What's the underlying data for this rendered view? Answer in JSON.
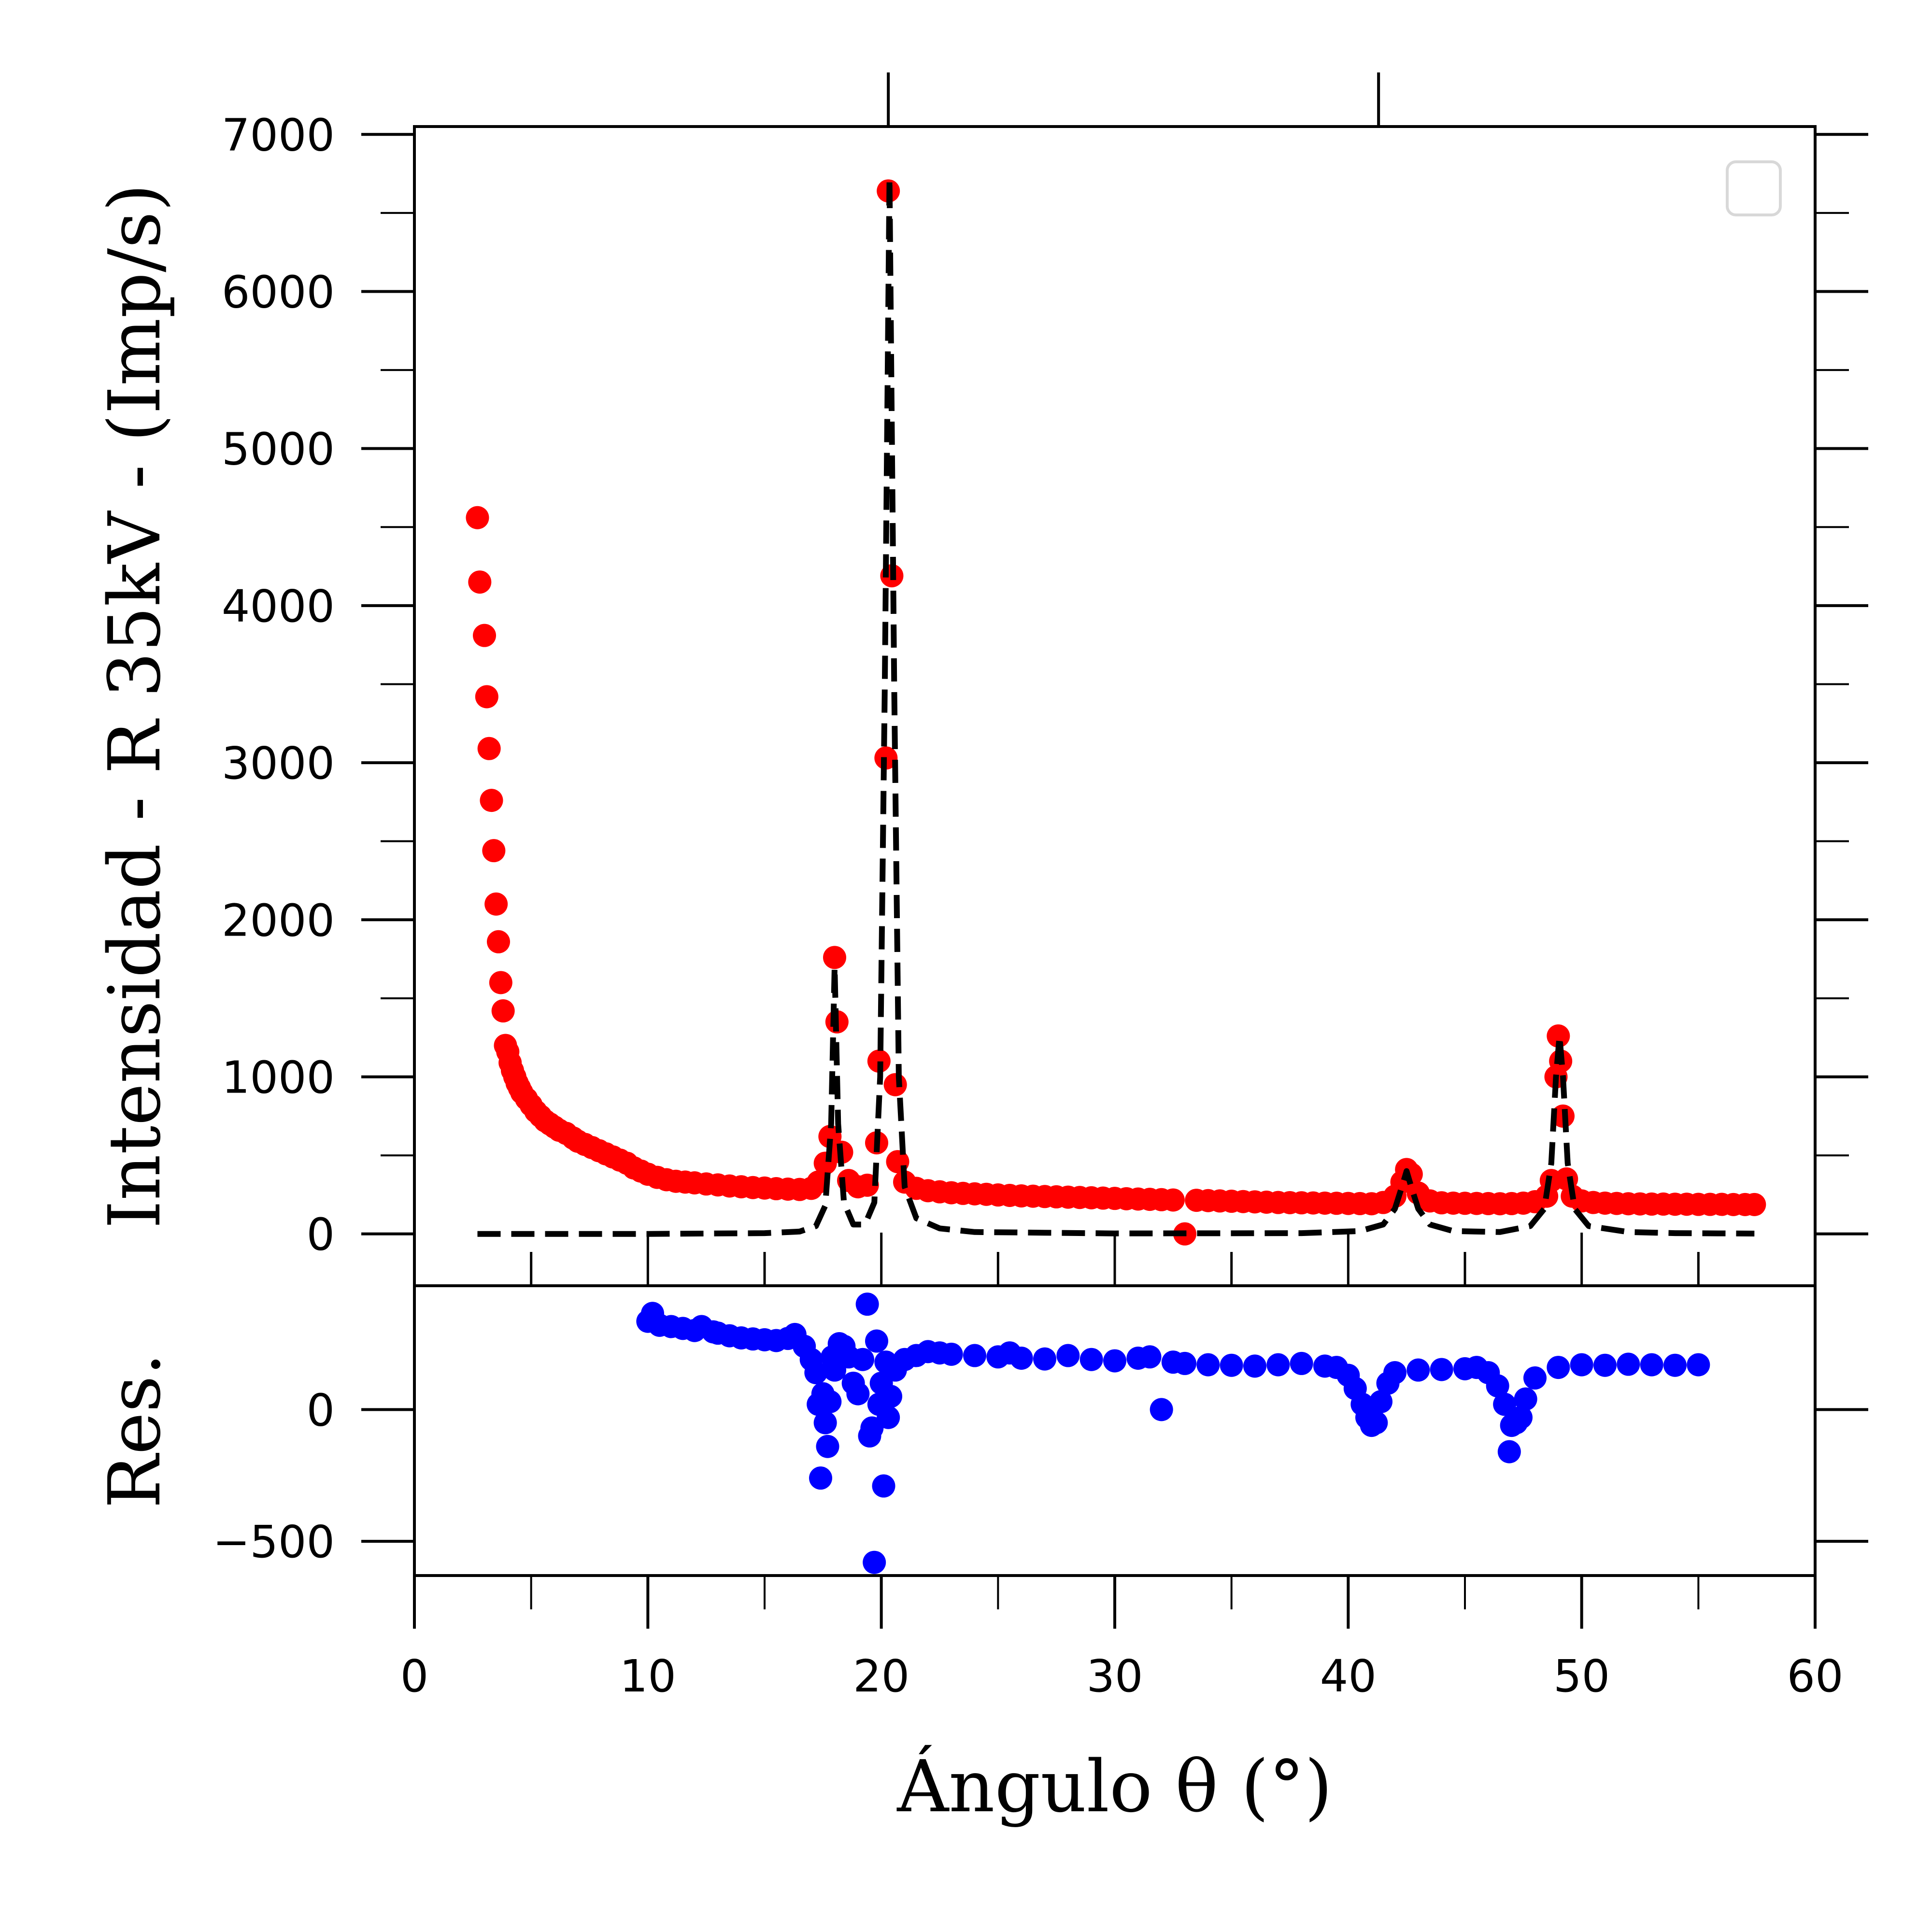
{
  "chart_data": {
    "type": "scatter",
    "xlabel": "Ángulo θ (°)",
    "ylabel": "Intensidad - R 35kV - (Imp/s)",
    "residual_label": "Res.",
    "xlim": [
      0,
      60
    ],
    "ylim_main": [
      -330,
      7050
    ],
    "ylim_residual": [
      -630,
      470
    ],
    "x_ticks": [
      0,
      10,
      20,
      30,
      40,
      50,
      60
    ],
    "y_ticks_main": [
      0,
      1000,
      2000,
      3000,
      4000,
      5000,
      6000,
      7000
    ],
    "y_ticks_residual": [
      -500,
      0
    ],
    "y_tick_labels_residual": [
      "−500",
      "0"
    ],
    "legend": {
      "position": "top-right",
      "entries": []
    },
    "grid": false,
    "colors": {
      "data": "#ff0000",
      "fit": "#000000",
      "residual": "#0000ff"
    },
    "series": [
      {
        "kind": "measured",
        "style": "markers",
        "color": "#ff0000",
        "points": [
          [
            2.7,
            4560
          ],
          [
            2.8,
            4150
          ],
          [
            3.0,
            3810
          ],
          [
            3.1,
            3420
          ],
          [
            3.2,
            3090
          ],
          [
            3.3,
            2760
          ],
          [
            3.4,
            2440
          ],
          [
            3.5,
            2100
          ],
          [
            3.6,
            1860
          ],
          [
            3.7,
            1600
          ],
          [
            3.8,
            1420
          ],
          [
            3.9,
            1200
          ],
          [
            4.0,
            1160
          ],
          [
            4.1,
            1090
          ],
          [
            4.2,
            1040
          ],
          [
            4.3,
            1000
          ],
          [
            4.4,
            960
          ],
          [
            4.5,
            930
          ],
          [
            4.6,
            900
          ],
          [
            4.8,
            860
          ],
          [
            5.0,
            820
          ],
          [
            5.2,
            780
          ],
          [
            5.4,
            750
          ],
          [
            5.6,
            720
          ],
          [
            5.8,
            700
          ],
          [
            6.0,
            680
          ],
          [
            6.2,
            660
          ],
          [
            6.5,
            640
          ],
          [
            6.8,
            610
          ],
          [
            7.0,
            590
          ],
          [
            7.3,
            570
          ],
          [
            7.6,
            550
          ],
          [
            7.9,
            530
          ],
          [
            8.2,
            510
          ],
          [
            8.5,
            490
          ],
          [
            8.8,
            470
          ],
          [
            9.1,
            450
          ],
          [
            9.4,
            420
          ],
          [
            9.7,
            400
          ],
          [
            10.0,
            380
          ],
          [
            10.4,
            360
          ],
          [
            10.8,
            345
          ],
          [
            11.2,
            335
          ],
          [
            11.6,
            330
          ],
          [
            12.0,
            325
          ],
          [
            12.5,
            318
          ],
          [
            13.0,
            312
          ],
          [
            13.5,
            305
          ],
          [
            14.0,
            300
          ],
          [
            14.5,
            295
          ],
          [
            15.0,
            292
          ],
          [
            15.5,
            288
          ],
          [
            16.0,
            285
          ],
          [
            16.5,
            283
          ],
          [
            17.0,
            290
          ],
          [
            17.3,
            330
          ],
          [
            17.6,
            450
          ],
          [
            17.8,
            620
          ],
          [
            18.0,
            1760
          ],
          [
            18.1,
            1350
          ],
          [
            18.3,
            520
          ],
          [
            18.6,
            340
          ],
          [
            19.0,
            300
          ],
          [
            19.4,
            310
          ],
          [
            19.8,
            580
          ],
          [
            19.9,
            1100
          ],
          [
            20.2,
            3030
          ],
          [
            20.3,
            6640
          ],
          [
            20.45,
            4190
          ],
          [
            20.6,
            950
          ],
          [
            20.7,
            460
          ],
          [
            21.0,
            330
          ],
          [
            21.5,
            290
          ],
          [
            22.0,
            275
          ],
          [
            22.5,
            268
          ],
          [
            23.0,
            262
          ],
          [
            23.5,
            258
          ],
          [
            24.0,
            255
          ],
          [
            24.5,
            252
          ],
          [
            25.0,
            248
          ],
          [
            25.5,
            245
          ],
          [
            26.0,
            242
          ],
          [
            26.5,
            240
          ],
          [
            27.0,
            238
          ],
          [
            27.5,
            236
          ],
          [
            28.0,
            234
          ],
          [
            28.5,
            232
          ],
          [
            29.0,
            230
          ],
          [
            29.5,
            228
          ],
          [
            30.0,
            226
          ],
          [
            30.5,
            224
          ],
          [
            31.0,
            222
          ],
          [
            31.5,
            220
          ],
          [
            32.0,
            218
          ],
          [
            32.5,
            216
          ],
          [
            33.0,
            0
          ],
          [
            33.5,
            214
          ],
          [
            34.0,
            212
          ],
          [
            34.5,
            210
          ],
          [
            35.0,
            208
          ],
          [
            35.5,
            206
          ],
          [
            36.0,
            204
          ],
          [
            36.5,
            202
          ],
          [
            37.0,
            200
          ],
          [
            37.5,
            199
          ],
          [
            38.0,
            198
          ],
          [
            38.5,
            197
          ],
          [
            39.0,
            196
          ],
          [
            39.5,
            195
          ],
          [
            40.0,
            194
          ],
          [
            40.5,
            193
          ],
          [
            41.0,
            192
          ],
          [
            41.5,
            200
          ],
          [
            42.0,
            240
          ],
          [
            42.3,
            330
          ],
          [
            42.5,
            410
          ],
          [
            42.7,
            380
          ],
          [
            43.0,
            260
          ],
          [
            43.5,
            210
          ],
          [
            44.0,
            198
          ],
          [
            44.5,
            196
          ],
          [
            45.0,
            195
          ],
          [
            45.5,
            194
          ],
          [
            46.0,
            193
          ],
          [
            46.5,
            192
          ],
          [
            47.0,
            193
          ],
          [
            47.5,
            196
          ],
          [
            48.0,
            205
          ],
          [
            48.5,
            240
          ],
          [
            48.7,
            340
          ],
          [
            48.9,
            1000
          ],
          [
            49.0,
            1260
          ],
          [
            49.1,
            1100
          ],
          [
            49.2,
            750
          ],
          [
            49.35,
            350
          ],
          [
            49.6,
            240
          ],
          [
            50.0,
            210
          ],
          [
            50.5,
            200
          ],
          [
            51.0,
            196
          ],
          [
            51.5,
            194
          ],
          [
            52.0,
            192
          ],
          [
            52.5,
            191
          ],
          [
            53.0,
            190
          ],
          [
            53.5,
            190
          ],
          [
            54.0,
            189
          ],
          [
            54.5,
            189
          ],
          [
            55.0,
            188
          ],
          [
            55.5,
            188
          ],
          [
            56.0,
            188
          ],
          [
            56.5,
            187
          ],
          [
            57.0,
            187
          ],
          [
            57.4,
            187
          ]
        ]
      },
      {
        "kind": "fit",
        "style": "dashed-line",
        "color": "#000000",
        "points": [
          [
            2.7,
            0
          ],
          [
            10.0,
            0
          ],
          [
            15.0,
            5
          ],
          [
            16.5,
            15
          ],
          [
            17.2,
            50
          ],
          [
            17.6,
            180
          ],
          [
            17.85,
            700
          ],
          [
            18.0,
            1700
          ],
          [
            18.15,
            700
          ],
          [
            18.4,
            200
          ],
          [
            18.8,
            60
          ],
          [
            19.3,
            60
          ],
          [
            19.7,
            200
          ],
          [
            19.95,
            1000
          ],
          [
            20.15,
            3500
          ],
          [
            20.35,
            6720
          ],
          [
            20.55,
            3500
          ],
          [
            20.75,
            1000
          ],
          [
            21.0,
            300
          ],
          [
            21.5,
            100
          ],
          [
            22.5,
            35
          ],
          [
            24.0,
            12
          ],
          [
            30.0,
            3
          ],
          [
            38.0,
            5
          ],
          [
            40.5,
            18
          ],
          [
            41.5,
            60
          ],
          [
            42.0,
            160
          ],
          [
            42.3,
            300
          ],
          [
            42.5,
            400
          ],
          [
            42.7,
            300
          ],
          [
            43.0,
            160
          ],
          [
            43.5,
            60
          ],
          [
            44.5,
            18
          ],
          [
            46.5,
            12
          ],
          [
            47.8,
            50
          ],
          [
            48.4,
            160
          ],
          [
            48.7,
            450
          ],
          [
            48.9,
            1000
          ],
          [
            49.05,
            1260
          ],
          [
            49.2,
            1000
          ],
          [
            49.4,
            450
          ],
          [
            49.7,
            160
          ],
          [
            50.3,
            50
          ],
          [
            52.0,
            12
          ],
          [
            54.0,
            5
          ],
          [
            57.4,
            2
          ]
        ]
      },
      {
        "kind": "residual",
        "style": "markers",
        "color": "#0000ff",
        "points": [
          [
            10.0,
            335
          ],
          [
            10.2,
            365
          ],
          [
            10.5,
            320
          ],
          [
            11.0,
            315
          ],
          [
            11.5,
            308
          ],
          [
            12.0,
            300
          ],
          [
            12.3,
            315
          ],
          [
            12.8,
            295
          ],
          [
            13.0,
            290
          ],
          [
            13.5,
            280
          ],
          [
            14.0,
            272
          ],
          [
            14.5,
            268
          ],
          [
            15.0,
            265
          ],
          [
            15.5,
            262
          ],
          [
            16.0,
            270
          ],
          [
            16.3,
            285
          ],
          [
            16.7,
            240
          ],
          [
            17.0,
            190
          ],
          [
            17.2,
            140
          ],
          [
            17.3,
            20
          ],
          [
            17.4,
            -260
          ],
          [
            17.5,
            60
          ],
          [
            17.6,
            -50
          ],
          [
            17.7,
            -140
          ],
          [
            17.8,
            30
          ],
          [
            17.9,
            200
          ],
          [
            18.0,
            150
          ],
          [
            18.2,
            250
          ],
          [
            18.4,
            240
          ],
          [
            18.6,
            200
          ],
          [
            18.8,
            100
          ],
          [
            19.0,
            60
          ],
          [
            19.2,
            190
          ],
          [
            19.4,
            400
          ],
          [
            19.5,
            -100
          ],
          [
            19.6,
            -70
          ],
          [
            19.7,
            -580
          ],
          [
            19.8,
            260
          ],
          [
            19.9,
            20
          ],
          [
            20.0,
            100
          ],
          [
            20.1,
            -290
          ],
          [
            20.2,
            180
          ],
          [
            20.3,
            -30
          ],
          [
            20.4,
            50
          ],
          [
            20.6,
            150
          ],
          [
            21.0,
            190
          ],
          [
            21.5,
            205
          ],
          [
            22.0,
            220
          ],
          [
            22.5,
            215
          ],
          [
            23.0,
            210
          ],
          [
            24.0,
            205
          ],
          [
            25.0,
            200
          ],
          [
            25.5,
            215
          ],
          [
            26.0,
            195
          ],
          [
            27.0,
            192
          ],
          [
            28.0,
            205
          ],
          [
            29.0,
            190
          ],
          [
            30.0,
            185
          ],
          [
            31.0,
            195
          ],
          [
            31.5,
            200
          ],
          [
            32.0,
            0
          ],
          [
            32.5,
            180
          ],
          [
            33.0,
            175
          ],
          [
            34.0,
            170
          ],
          [
            35.0,
            168
          ],
          [
            36.0,
            165
          ],
          [
            37.0,
            170
          ],
          [
            38.0,
            175
          ],
          [
            39.0,
            165
          ],
          [
            39.5,
            160
          ],
          [
            40.0,
            130
          ],
          [
            40.3,
            80
          ],
          [
            40.6,
            20
          ],
          [
            40.8,
            -30
          ],
          [
            41.0,
            -60
          ],
          [
            41.2,
            -50
          ],
          [
            41.4,
            30
          ],
          [
            41.7,
            100
          ],
          [
            42.0,
            140
          ],
          [
            43.0,
            150
          ],
          [
            44.0,
            152
          ],
          [
            45.0,
            155
          ],
          [
            45.5,
            160
          ],
          [
            46.0,
            140
          ],
          [
            46.4,
            90
          ],
          [
            46.7,
            20
          ],
          [
            46.9,
            -160
          ],
          [
            47.0,
            -60
          ],
          [
            47.2,
            -50
          ],
          [
            47.4,
            -30
          ],
          [
            47.6,
            40
          ],
          [
            48.0,
            120
          ],
          [
            49.0,
            160
          ],
          [
            50.0,
            170
          ],
          [
            51.0,
            168
          ],
          [
            52.0,
            172
          ],
          [
            53.0,
            170
          ],
          [
            54.0,
            168
          ],
          [
            55.0,
            170
          ]
        ]
      }
    ]
  }
}
